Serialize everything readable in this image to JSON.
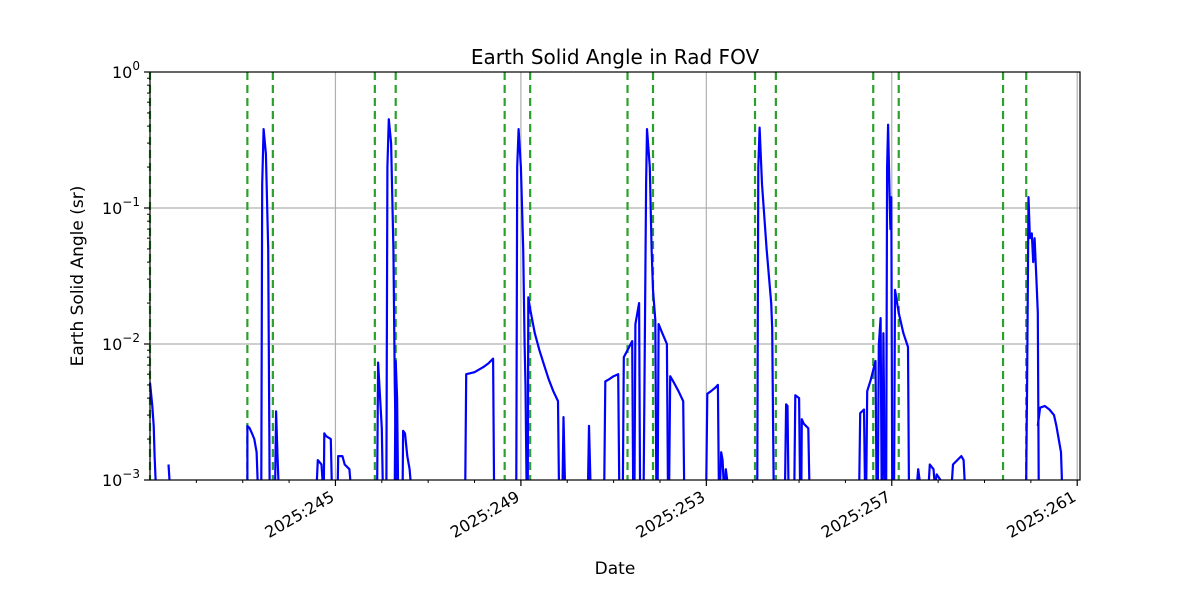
{
  "chart_data": {
    "type": "line",
    "title": "Earth Solid Angle in Rad FOV",
    "xlabel": "Date",
    "ylabel": "Earth Solid Angle (sr)",
    "yscale": "log",
    "ylim": [
      0.001,
      1
    ],
    "xlim": [
      241.0,
      261.0
    ],
    "grid": true,
    "x_ticks": [
      {
        "value": 245,
        "label": "2025:245"
      },
      {
        "value": 249,
        "label": "2025:249"
      },
      {
        "value": 253,
        "label": "2025:253"
      },
      {
        "value": 257,
        "label": "2025:257"
      },
      {
        "value": 261,
        "label": "2025:261"
      }
    ],
    "y_ticks": [
      {
        "value": 0.001,
        "base": "10",
        "exp": "−3"
      },
      {
        "value": 0.01,
        "base": "10",
        "exp": "−2"
      },
      {
        "value": 0.1,
        "base": "10",
        "exp": "−1"
      },
      {
        "value": 1,
        "base": "10",
        "exp": "0"
      }
    ],
    "vlines": {
      "color": "#2ca02c",
      "style": "dashed",
      "x": [
        241.0,
        243.1,
        243.65,
        245.85,
        246.3,
        248.65,
        249.2,
        251.3,
        251.85,
        254.05,
        254.5,
        256.6,
        257.15,
        259.4,
        259.9
      ]
    },
    "series": [
      {
        "color": "#0000ff",
        "segments": [
          [
            [
              241.0,
              0.0052
            ],
            [
              241.05,
              0.0035
            ],
            [
              241.08,
              0.0025
            ],
            [
              241.1,
              0.0015
            ],
            [
              241.12,
              0.001
            ]
          ],
          [
            [
              241.4,
              0.0013
            ],
            [
              241.42,
              0.001
            ]
          ],
          [
            [
              243.1,
              0.001
            ],
            [
              243.1,
              0.0025
            ],
            [
              243.15,
              0.0024
            ],
            [
              243.2,
              0.0022
            ],
            [
              243.25,
              0.002
            ],
            [
              243.3,
              0.0016
            ],
            [
              243.32,
              0.001
            ]
          ],
          [
            [
              243.4,
              0.001
            ],
            [
              243.42,
              0.15
            ],
            [
              243.45,
              0.38
            ],
            [
              243.5,
              0.25
            ],
            [
              243.55,
              0.05
            ],
            [
              243.58,
              0.001
            ]
          ],
          [
            [
              243.7,
              0.001
            ],
            [
              243.72,
              0.0032
            ],
            [
              243.75,
              0.0015
            ],
            [
              243.77,
              0.001
            ]
          ],
          [
            [
              244.6,
              0.001
            ],
            [
              244.62,
              0.0014
            ],
            [
              244.7,
              0.0013
            ],
            [
              244.72,
              0.001
            ]
          ],
          [
            [
              244.75,
              0.001
            ],
            [
              244.76,
              0.0022
            ],
            [
              244.8,
              0.0021
            ],
            [
              244.9,
              0.002
            ],
            [
              244.92,
              0.001
            ]
          ],
          [
            [
              245.05,
              0.001
            ],
            [
              245.06,
              0.0015
            ],
            [
              245.15,
              0.0015
            ],
            [
              245.2,
              0.0013
            ],
            [
              245.3,
              0.0012
            ],
            [
              245.32,
              0.001
            ]
          ],
          [
            [
              245.9,
              0.001
            ],
            [
              245.92,
              0.0073
            ],
            [
              246.0,
              0.0024
            ],
            [
              246.02,
              0.001
            ]
          ],
          [
            [
              246.1,
              0.001
            ],
            [
              246.12,
              0.2
            ],
            [
              246.15,
              0.45
            ],
            [
              246.2,
              0.3
            ],
            [
              246.25,
              0.05
            ],
            [
              246.28,
              0.005
            ],
            [
              246.3,
              0.002
            ],
            [
              246.32,
              0.001
            ]
          ],
          [
            [
              246.28,
              0.001
            ],
            [
              246.3,
              0.0075
            ],
            [
              246.33,
              0.004
            ],
            [
              246.35,
              0.001
            ]
          ],
          [
            [
              246.45,
              0.001
            ],
            [
              246.46,
              0.0023
            ],
            [
              246.5,
              0.0022
            ],
            [
              246.55,
              0.0015
            ],
            [
              246.6,
              0.0012
            ],
            [
              246.62,
              0.001
            ]
          ],
          [
            [
              247.8,
              0.001
            ],
            [
              247.82,
              0.006
            ],
            [
              248.0,
              0.0062
            ],
            [
              248.2,
              0.0068
            ],
            [
              248.3,
              0.0072
            ],
            [
              248.4,
              0.0078
            ],
            [
              248.42,
              0.001
            ]
          ],
          [
            [
              248.9,
              0.001
            ],
            [
              248.92,
              0.2
            ],
            [
              248.95,
              0.38
            ],
            [
              249.0,
              0.2
            ],
            [
              249.05,
              0.05
            ],
            [
              249.08,
              0.01
            ],
            [
              249.1,
              0.005
            ],
            [
              249.12,
              0.001
            ]
          ],
          [
            [
              249.15,
              0.001
            ],
            [
              249.16,
              0.022
            ],
            [
              249.2,
              0.018
            ],
            [
              249.3,
              0.012
            ],
            [
              249.4,
              0.009
            ],
            [
              249.5,
              0.007
            ],
            [
              249.6,
              0.0055
            ],
            [
              249.7,
              0.0045
            ],
            [
              249.8,
              0.0038
            ],
            [
              249.82,
              0.001
            ]
          ],
          [
            [
              249.9,
              0.001
            ],
            [
              249.92,
              0.0029
            ],
            [
              249.95,
              0.001
            ]
          ],
          [
            [
              250.45,
              0.001
            ],
            [
              250.47,
              0.0025
            ],
            [
              250.5,
              0.001
            ]
          ],
          [
            [
              250.8,
              0.001
            ],
            [
              250.82,
              0.0053
            ],
            [
              250.9,
              0.0055
            ],
            [
              251.0,
              0.0058
            ],
            [
              251.1,
              0.006
            ],
            [
              251.12,
              0.001
            ]
          ],
          [
            [
              251.2,
              0.001
            ],
            [
              251.22,
              0.008
            ],
            [
              251.3,
              0.009
            ],
            [
              251.4,
              0.0105
            ],
            [
              251.42,
              0.001
            ]
          ],
          [
            [
              251.45,
              0.001
            ],
            [
              251.47,
              0.014
            ],
            [
              251.5,
              0.016
            ],
            [
              251.55,
              0.02
            ],
            [
              251.57,
              0.001
            ]
          ],
          [
            [
              251.65,
              0.001
            ],
            [
              251.7,
              0.15
            ],
            [
              251.72,
              0.38
            ],
            [
              251.78,
              0.2
            ],
            [
              251.82,
              0.05
            ],
            [
              251.85,
              0.025
            ],
            [
              251.9,
              0.015
            ],
            [
              251.92,
              0.001
            ]
          ],
          [
            [
              251.95,
              0.001
            ],
            [
              251.97,
              0.014
            ],
            [
              252.05,
              0.012
            ],
            [
              252.15,
              0.01
            ],
            [
              252.17,
              0.001
            ]
          ],
          [
            [
              252.2,
              0.001
            ],
            [
              252.22,
              0.0058
            ],
            [
              252.3,
              0.0052
            ],
            [
              252.4,
              0.0045
            ],
            [
              252.5,
              0.0038
            ],
            [
              252.52,
              0.001
            ]
          ],
          [
            [
              253.0,
              0.001
            ],
            [
              253.02,
              0.0043
            ],
            [
              253.1,
              0.0045
            ],
            [
              253.2,
              0.0048
            ],
            [
              253.25,
              0.005
            ],
            [
              253.27,
              0.001
            ]
          ],
          [
            [
              253.3,
              0.001
            ],
            [
              253.32,
              0.0016
            ],
            [
              253.35,
              0.0014
            ],
            [
              253.37,
              0.001
            ]
          ],
          [
            [
              253.4,
              0.001
            ],
            [
              253.42,
              0.0012
            ],
            [
              253.45,
              0.001
            ]
          ],
          [
            [
              254.1,
              0.001
            ],
            [
              254.12,
              0.2
            ],
            [
              254.15,
              0.39
            ],
            [
              254.2,
              0.15
            ],
            [
              254.3,
              0.05
            ],
            [
              254.4,
              0.02
            ],
            [
              254.42,
              0.013
            ],
            [
              254.45,
              0.001
            ]
          ],
          [
            [
              254.7,
              0.001
            ],
            [
              254.72,
              0.0036
            ],
            [
              254.75,
              0.0035
            ],
            [
              254.77,
              0.001
            ]
          ],
          [
            [
              254.9,
              0.001
            ],
            [
              254.92,
              0.0042
            ],
            [
              255.0,
              0.004
            ],
            [
              255.02,
              0.001
            ]
          ],
          [
            [
              255.05,
              0.001
            ],
            [
              255.06,
              0.0028
            ],
            [
              255.1,
              0.0026
            ],
            [
              255.2,
              0.0024
            ],
            [
              255.22,
              0.001
            ]
          ],
          [
            [
              256.3,
              0.001
            ],
            [
              256.32,
              0.0031
            ],
            [
              256.4,
              0.0033
            ],
            [
              256.42,
              0.001
            ]
          ],
          [
            [
              256.45,
              0.001
            ],
            [
              256.47,
              0.0045
            ],
            [
              256.55,
              0.0055
            ],
            [
              256.65,
              0.0075
            ],
            [
              256.67,
              0.001
            ]
          ],
          [
            [
              256.7,
              0.001
            ],
            [
              256.72,
              0.0098
            ],
            [
              256.76,
              0.0155
            ],
            [
              256.78,
              0.001
            ]
          ],
          [
            [
              256.8,
              0.001
            ],
            [
              256.82,
              0.012
            ],
            [
              256.85,
              0.001
            ]
          ],
          [
            [
              256.88,
              0.001
            ],
            [
              256.9,
              0.2
            ],
            [
              256.92,
              0.41
            ],
            [
              256.95,
              0.13
            ],
            [
              256.97,
              0.07
            ],
            [
              256.99,
              0.12
            ],
            [
              257.01,
              0.001
            ]
          ],
          [
            [
              257.05,
              0.001
            ],
            [
              257.07,
              0.025
            ],
            [
              257.15,
              0.017
            ],
            [
              257.25,
              0.012
            ],
            [
              257.35,
              0.0095
            ],
            [
              257.37,
              0.001
            ]
          ],
          [
            [
              257.55,
              0.001
            ],
            [
              257.57,
              0.0012
            ],
            [
              257.6,
              0.001
            ]
          ],
          [
            [
              257.8,
              0.001
            ],
            [
              257.82,
              0.0013
            ],
            [
              257.9,
              0.0012
            ],
            [
              257.92,
              0.001
            ]
          ],
          [
            [
              257.95,
              0.001
            ],
            [
              257.97,
              0.0011
            ],
            [
              258.05,
              0.001
            ]
          ],
          [
            [
              258.3,
              0.001
            ],
            [
              258.32,
              0.0013
            ],
            [
              258.5,
              0.0015
            ],
            [
              258.55,
              0.0014
            ],
            [
              258.57,
              0.001
            ]
          ],
          [
            [
              259.9,
              0.001
            ],
            [
              259.92,
              0.005
            ],
            [
              259.95,
              0.12
            ],
            [
              259.98,
              0.06
            ],
            [
              260.02,
              0.065
            ],
            [
              260.05,
              0.04
            ],
            [
              260.08,
              0.06
            ],
            [
              260.12,
              0.03
            ],
            [
              260.15,
              0.017
            ],
            [
              260.17,
              0.001
            ]
          ],
          [
            [
              260.15,
              0.0025
            ],
            [
              260.2,
              0.0034
            ],
            [
              260.3,
              0.0035
            ],
            [
              260.4,
              0.0033
            ],
            [
              260.5,
              0.003
            ],
            [
              260.55,
              0.0025
            ],
            [
              260.6,
              0.002
            ],
            [
              260.65,
              0.0016
            ],
            [
              260.67,
              0.001
            ]
          ]
        ]
      }
    ]
  }
}
